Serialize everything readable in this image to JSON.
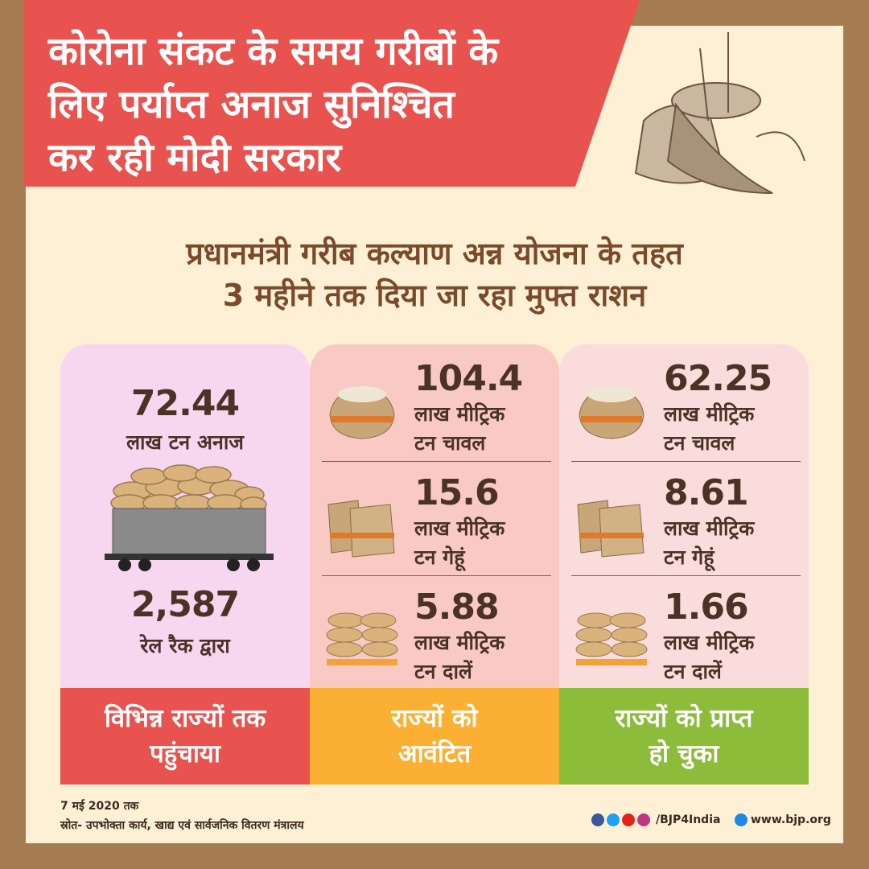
{
  "header": {
    "title_lines": [
      "कोरोना संकट के समय गरीबों के",
      "लिए पर्याप्त अनाज सुनिश्चित",
      "कर रही मोदी सरकार"
    ],
    "subtitle_lines": [
      "प्रधानमंत्री गरीब कल्याण अन्न योजना के तहत",
      "3 महीने तक दिया जा रहा मुफ्त राशन"
    ]
  },
  "columns": [
    {
      "total": "72.44",
      "total_unit": "लाख टन अनाज",
      "rakes": "2,587",
      "rakes_unit": "रेल रैक द्वारा",
      "label_lines": [
        "विभिन्न राज्यों तक",
        "पहुंचाया"
      ]
    },
    {
      "items": [
        {
          "value": "104.4",
          "unit_lines": [
            "लाख मीट्रिक",
            "टन चावल"
          ]
        },
        {
          "value": "15.6",
          "unit_lines": [
            "लाख मीट्रिक",
            "टन गेहूं"
          ]
        },
        {
          "value": "5.88",
          "unit_lines": [
            "लाख मीट्रिक",
            "टन दालें"
          ]
        }
      ],
      "label_lines": [
        "राज्यों को",
        "आवंटित"
      ]
    },
    {
      "items": [
        {
          "value": "62.25",
          "unit_lines": [
            "लाख मीट्रिक",
            "टन चावल"
          ]
        },
        {
          "value": "8.61",
          "unit_lines": [
            "लाख मीट्रिक",
            "टन गेहूं"
          ]
        },
        {
          "value": "1.66",
          "unit_lines": [
            "लाख मीट्रिक",
            "टन दालें"
          ]
        }
      ],
      "label_lines": [
        "राज्यों को प्राप्त",
        "हो चुका"
      ]
    }
  ],
  "footer": {
    "date": "7 मई 2020 तक",
    "source": "स्रोत- उपभोक्ता कार्य, खाद्य एवं सार्वजनिक वितरण मंत्रालय",
    "handle": "/BJP4India",
    "website": "www.bjp.org"
  }
}
